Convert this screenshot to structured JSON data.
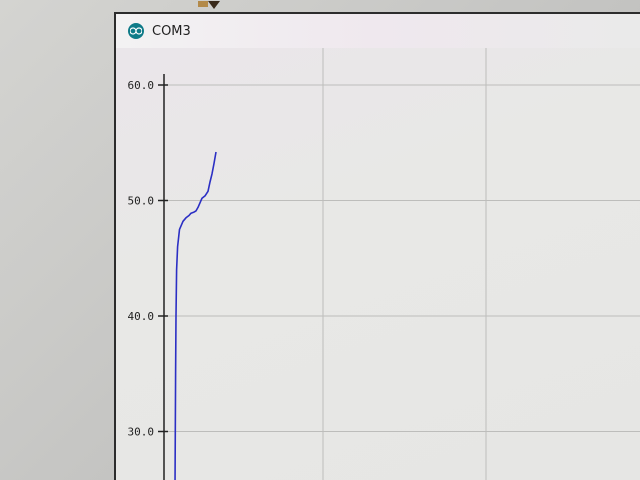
{
  "window": {
    "title": "COM3",
    "icon": "arduino-icon"
  },
  "colors": {
    "trace": "#2b2fc4",
    "grid": "#bdbdbb",
    "axis": "#222222",
    "icon": "#0f7b88"
  },
  "chart_data": {
    "type": "line",
    "title": "",
    "xlabel": "",
    "ylabel": "",
    "y_tick_labels": [
      "60.0",
      "50.0",
      "40.0",
      "30.0"
    ],
    "ylim": [
      25,
      60
    ],
    "grid": true,
    "series": [
      {
        "values": [
          25,
          30,
          35,
          40,
          44,
          46,
          47.5,
          48.2,
          48.5,
          48.7,
          48.9,
          49.0,
          49.1,
          49.4,
          50.2,
          50.4,
          50.8,
          51.6,
          52.3,
          53.2,
          54.2
        ]
      }
    ]
  }
}
